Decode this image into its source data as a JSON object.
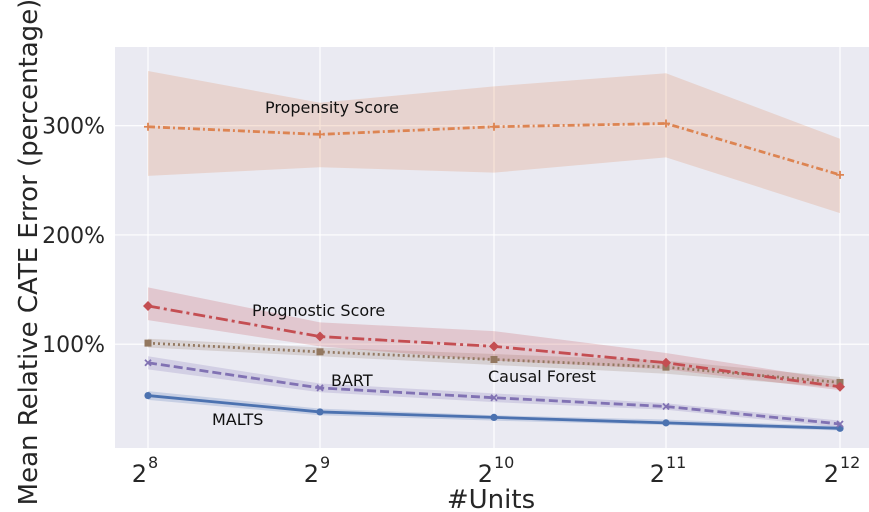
{
  "chart_data": {
    "type": "line",
    "title": "",
    "xlabel": "#Units",
    "ylabel": "Mean Relative CATE Error (percentage)",
    "x": [
      256,
      512,
      1024,
      2048,
      4096
    ],
    "x_tick_labels": [
      {
        "base": "2",
        "exp": "8"
      },
      {
        "base": "2",
        "exp": "9"
      },
      {
        "base": "2",
        "exp": "10"
      },
      {
        "base": "2",
        "exp": "11"
      },
      {
        "base": "2",
        "exp": "12"
      }
    ],
    "x_scale": "log2",
    "y_ticks": [
      100,
      200,
      300
    ],
    "y_tick_labels": [
      "100%",
      "200%",
      "300%"
    ],
    "ylim": [
      5,
      372
    ],
    "grid": true,
    "legend": "none (inline labels)",
    "colors": {
      "background": "#eaeaf2",
      "grid": "#ffffff",
      "malts": "#4c72b0",
      "bart": "#8172b3",
      "causal_forest": "#937860",
      "prognostic_score": "#c44e52",
      "propensity_score": "#dd8452"
    },
    "series": [
      {
        "key": "malts",
        "name": "MALTS",
        "values": [
          53,
          38,
          33,
          28,
          23
        ],
        "band_low": [
          49,
          35,
          30,
          26,
          21
        ],
        "band_high": [
          57,
          41,
          35,
          31,
          25
        ],
        "marker": "circle",
        "dash": "solid"
      },
      {
        "key": "bart",
        "name": "BART",
        "values": [
          83,
          60,
          51,
          43,
          27
        ],
        "band_low": [
          77,
          56,
          47,
          40,
          24
        ],
        "band_high": [
          89,
          64,
          55,
          46,
          30
        ],
        "marker": "x",
        "dash": "dashed"
      },
      {
        "key": "causal_forest",
        "name": "Causal Forest",
        "values": [
          101,
          93,
          86,
          79,
          65
        ],
        "band_low": [
          97,
          89,
          81,
          73,
          60
        ],
        "band_high": [
          105,
          97,
          91,
          85,
          70
        ],
        "marker": "square",
        "dash": "dotted"
      },
      {
        "key": "prognostic_score",
        "name": "Prognostic Score",
        "values": [
          135,
          107,
          98,
          83,
          61
        ],
        "band_low": [
          122,
          98,
          85,
          77,
          58
        ],
        "band_high": [
          152,
          120,
          112,
          92,
          67
        ],
        "marker": "diamond",
        "dash": "dashdot"
      },
      {
        "key": "propensity_score",
        "name": "Propensity Score",
        "values": [
          299,
          292,
          299,
          302,
          255
        ],
        "band_low": [
          254,
          262,
          257,
          271,
          220
        ],
        "band_high": [
          350,
          321,
          336,
          348,
          288
        ],
        "marker": "plus",
        "dash": "dashdot-long"
      }
    ]
  }
}
